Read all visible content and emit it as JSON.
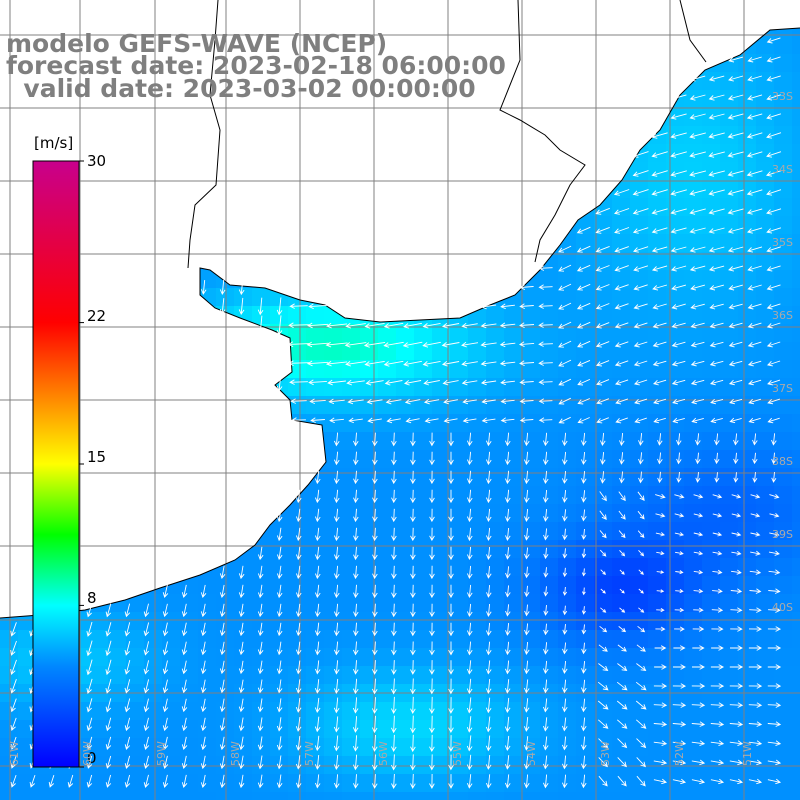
{
  "title": {
    "model": "modelo GEFS-WAVE (NCEP)",
    "forecast": "forecast date: 2023-02-18 06:00:00",
    "valid": "  valid date: 2023-03-02 00:00:00"
  },
  "colorbar": {
    "unit": "[m/s]",
    "min": 0,
    "max": 30,
    "ticks": [
      "30",
      "22",
      "15",
      "8",
      "0"
    ],
    "stops": [
      {
        "v": 0,
        "color": "#0000ff"
      },
      {
        "v": 5,
        "color": "#0088ff"
      },
      {
        "v": 8,
        "color": "#00ffff"
      },
      {
        "v": 11.5,
        "color": "#00ff00"
      },
      {
        "v": 15,
        "color": "#ffff00"
      },
      {
        "v": 22,
        "color": "#ff0000"
      },
      {
        "v": 30,
        "color": "#c8008c"
      }
    ]
  },
  "axes": {
    "lat_labels": [
      "33S",
      "34S",
      "35S",
      "36S",
      "37S",
      "38S",
      "39S",
      "40S"
    ],
    "lon_labels": [
      "61W",
      "60W",
      "59W",
      "58W",
      "57W",
      "56W",
      "55W",
      "54W",
      "53W",
      "52W",
      "51W"
    ]
  },
  "land_color": "#ffffff",
  "grid_color": "#808080",
  "coast_color": "#000000",
  "arrow_color": "#ffffff"
}
